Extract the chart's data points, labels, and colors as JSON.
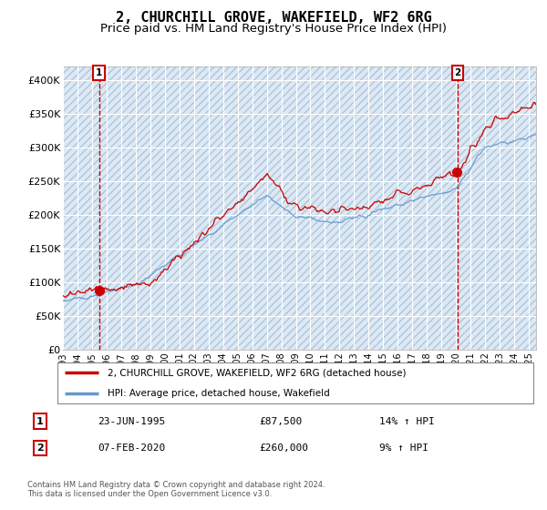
{
  "title": "2, CHURCHILL GROVE, WAKEFIELD, WF2 6RG",
  "subtitle": "Price paid vs. HM Land Registry's House Price Index (HPI)",
  "title_fontsize": 11,
  "subtitle_fontsize": 9.5,
  "bg_color": "#dce9f5",
  "hatch_color": "#b0c4d8",
  "grid_color": "#ffffff",
  "red_line_color": "#cc0000",
  "blue_line_color": "#6699cc",
  "marker_color": "#cc0000",
  "vline_color": "#cc0000",
  "ylim": [
    0,
    420000
  ],
  "yticks": [
    0,
    50000,
    100000,
    150000,
    200000,
    250000,
    300000,
    350000,
    400000
  ],
  "ytick_labels": [
    "£0",
    "£50K",
    "£100K",
    "£150K",
    "£200K",
    "£250K",
    "£300K",
    "£350K",
    "£400K"
  ],
  "sale1_date": 1995.48,
  "sale1_price": 87500,
  "sale1_label": "1",
  "sale2_date": 2020.1,
  "sale2_price": 260000,
  "sale2_label": "2",
  "legend_line1": "2, CHURCHILL GROVE, WAKEFIELD, WF2 6RG (detached house)",
  "legend_line2": "HPI: Average price, detached house, Wakefield",
  "table_row1": [
    "1",
    "23-JUN-1995",
    "£87,500",
    "14% ↑ HPI"
  ],
  "table_row2": [
    "2",
    "07-FEB-2020",
    "£260,000",
    "9% ↑ HPI"
  ],
  "footer": "Contains HM Land Registry data © Crown copyright and database right 2024.\nThis data is licensed under the Open Government Licence v3.0.",
  "xstart": 1993,
  "xend": 2025
}
